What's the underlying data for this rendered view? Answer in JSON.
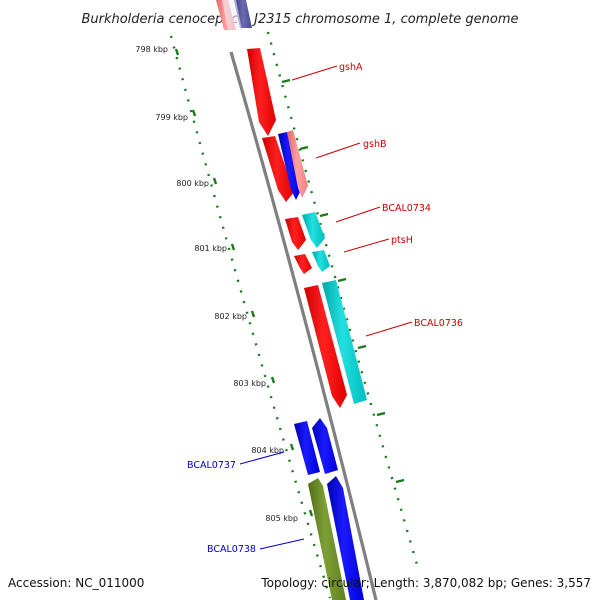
{
  "title": "Burkholderia cenocepacia J2315 chromosome 1, complete genome",
  "footer": {
    "accession": "Accession: NC_011000",
    "summary": "Topology: circular; Length: 3,870,082 bp; Genes: 3,557"
  },
  "ticks": [
    {
      "label": "798 kbp"
    },
    {
      "label": "799 kbp"
    },
    {
      "label": "800 kbp"
    },
    {
      "label": "801 kbp"
    },
    {
      "label": "802 kbp"
    },
    {
      "label": "803 kbp"
    },
    {
      "label": "804 kbp"
    },
    {
      "label": "805 kbp"
    }
  ],
  "genes": [
    {
      "name": "gshA",
      "color": "#cc0000"
    },
    {
      "name": "gshB",
      "color": "#cc0000"
    },
    {
      "name": "BCAL0734",
      "color": "#cc0000"
    },
    {
      "name": "ptsH",
      "color": "#cc0000"
    },
    {
      "name": "BCAL0736",
      "color": "#cc0000"
    },
    {
      "name": "BCAL0737",
      "color": "#0000cc"
    },
    {
      "name": "BCAL0738",
      "color": "#0000cc"
    }
  ],
  "colors": {
    "backbone": "#7f7f7f",
    "ticks": "#1a7a1a",
    "red": "#ff0000",
    "blue": "#0000ff",
    "cyan": "#00cccc",
    "olive": "#6b8e23",
    "pink": "#f08080",
    "purple": "#5050a0"
  }
}
